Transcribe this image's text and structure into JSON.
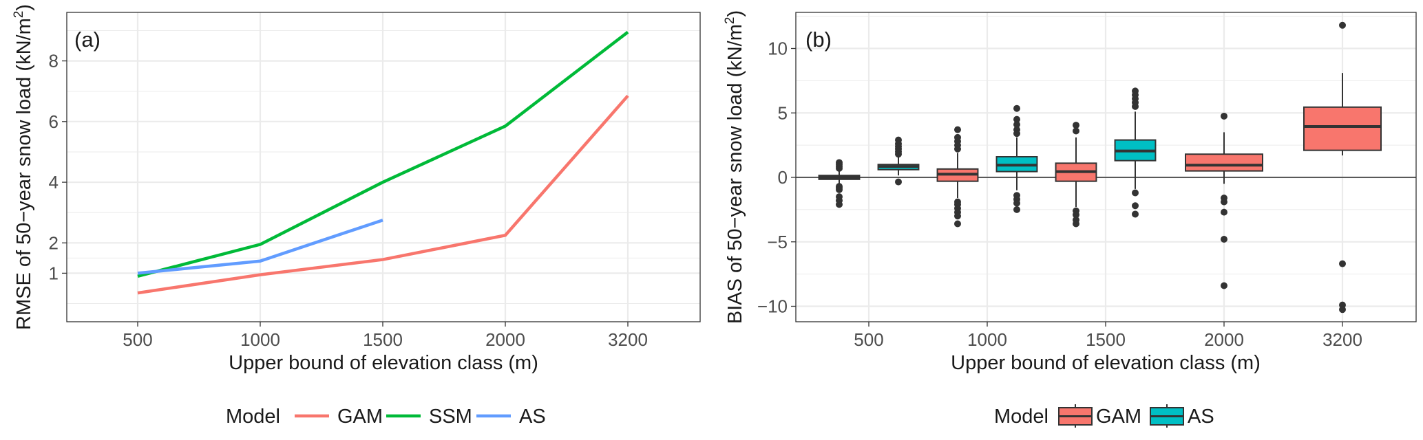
{
  "colors": {
    "GAM": "#F8766D",
    "SSM": "#00BA38",
    "AS_a": "#619CFF",
    "AS_b": "#00BFC4",
    "grid": "#EBEBEB",
    "panel_border": "#333333",
    "outlier": "#333333",
    "zero_line": "#595959"
  },
  "chart_data": [
    {
      "type": "line",
      "panel_label": "(a)",
      "xlabel": "Upper bound of elevation class (m)",
      "ylabel_main": "RMSE of 50−year snow load (kN/m",
      "ylabel_sup": "2",
      "ylabel_close": ")",
      "categories": [
        "500",
        "1000",
        "1500",
        "2000",
        "3200"
      ],
      "ylim": [
        -0.6,
        9.6
      ],
      "yticks": [
        1,
        2,
        4,
        6,
        8
      ],
      "ytick_labels": [
        "1",
        "2",
        "4",
        "6",
        "8"
      ],
      "series": [
        {
          "name": "GAM",
          "color_key": "GAM",
          "values": [
            0.35,
            0.95,
            1.45,
            2.25,
            6.85
          ]
        },
        {
          "name": "SSM",
          "color_key": "SSM",
          "values": [
            0.9,
            1.95,
            4.0,
            5.85,
            8.95
          ]
        },
        {
          "name": "AS",
          "color_key": "AS_a",
          "values": [
            1.0,
            1.4,
            2.75,
            null,
            null
          ]
        }
      ],
      "legend": {
        "title": "Model",
        "entries": [
          "GAM",
          "SSM",
          "AS"
        ],
        "entry_color_keys": [
          "GAM",
          "SSM",
          "AS_a"
        ],
        "position": "bottom"
      }
    },
    {
      "type": "boxplot",
      "panel_label": "(b)",
      "xlabel": "Upper bound of elevation class (m)",
      "ylabel_main": "BIAS of 50−year snow load (kN/m",
      "ylabel_sup": "2",
      "ylabel_close": ")",
      "categories": [
        "500",
        "1000",
        "1500",
        "2000",
        "3200"
      ],
      "ylim": [
        -11.2,
        12.8
      ],
      "yticks": [
        -10,
        -5,
        0,
        5,
        10
      ],
      "ytick_labels": [
        "−10",
        "−5",
        "0",
        "5",
        "10"
      ],
      "reference_line": 0,
      "groups": [
        {
          "category": "500",
          "model": "GAM",
          "color_key": "GAM",
          "q1": -0.15,
          "median": 0.0,
          "q3": 0.15,
          "whisker_low": -0.5,
          "whisker_high": 0.5,
          "outliers": [
            1.15,
            1.0,
            0.85,
            0.7,
            -0.7,
            -0.8,
            -0.95,
            -1.5,
            -1.8,
            -2.1
          ]
        },
        {
          "category": "500",
          "model": "AS",
          "color_key": "AS_b",
          "q1": 0.6,
          "median": 0.85,
          "q3": 1.0,
          "whisker_low": 0.15,
          "whisker_high": 1.55,
          "outliers": [
            2.9,
            2.6,
            2.4,
            2.2,
            2.0,
            1.8,
            -0.35
          ]
        },
        {
          "category": "1000",
          "model": "GAM",
          "color_key": "GAM",
          "q1": -0.3,
          "median": 0.25,
          "q3": 0.65,
          "whisker_low": -1.6,
          "whisker_high": 1.9,
          "outliers": [
            3.7,
            3.1,
            2.8,
            2.5,
            2.2,
            -1.9,
            -2.1,
            -2.4,
            -2.7,
            -3.0,
            -3.6
          ]
        },
        {
          "category": "1000",
          "model": "AS",
          "color_key": "AS_b",
          "q1": 0.45,
          "median": 0.95,
          "q3": 1.6,
          "whisker_low": -1.0,
          "whisker_high": 3.1,
          "outliers": [
            5.35,
            4.5,
            4.1,
            3.7,
            3.4,
            -1.4,
            -1.7,
            -2.0,
            -2.5
          ]
        },
        {
          "category": "1500",
          "model": "GAM",
          "color_key": "GAM",
          "q1": -0.3,
          "median": 0.45,
          "q3": 1.1,
          "whisker_low": -2.3,
          "whisker_high": 3.1,
          "outliers": [
            4.05,
            3.6,
            -2.6,
            -2.9,
            -3.3,
            -3.6
          ]
        },
        {
          "category": "1500",
          "model": "AS",
          "color_key": "AS_b",
          "q1": 1.3,
          "median": 2.05,
          "q3": 2.9,
          "whisker_low": -0.9,
          "whisker_high": 5.1,
          "outliers": [
            6.7,
            6.4,
            6.1,
            5.8,
            5.5,
            -1.2,
            -2.2,
            -2.85
          ]
        },
        {
          "category": "2000",
          "model": "GAM",
          "color_key": "GAM",
          "q1": 0.5,
          "median": 0.95,
          "q3": 1.8,
          "whisker_low": -0.5,
          "whisker_high": 3.5,
          "outliers": [
            4.75,
            -1.6,
            -1.9,
            -2.7,
            -4.8,
            -8.4
          ]
        },
        {
          "category": "3200",
          "model": "GAM",
          "color_key": "GAM",
          "q1": 2.1,
          "median": 3.95,
          "q3": 5.45,
          "whisker_low": 1.7,
          "whisker_high": 8.1,
          "outliers": [
            11.8,
            -6.7,
            -9.9,
            -10.25
          ]
        }
      ],
      "legend": {
        "title": "Model",
        "entries": [
          "GAM",
          "AS"
        ],
        "entry_color_keys": [
          "GAM",
          "AS_b"
        ],
        "position": "bottom"
      }
    }
  ]
}
